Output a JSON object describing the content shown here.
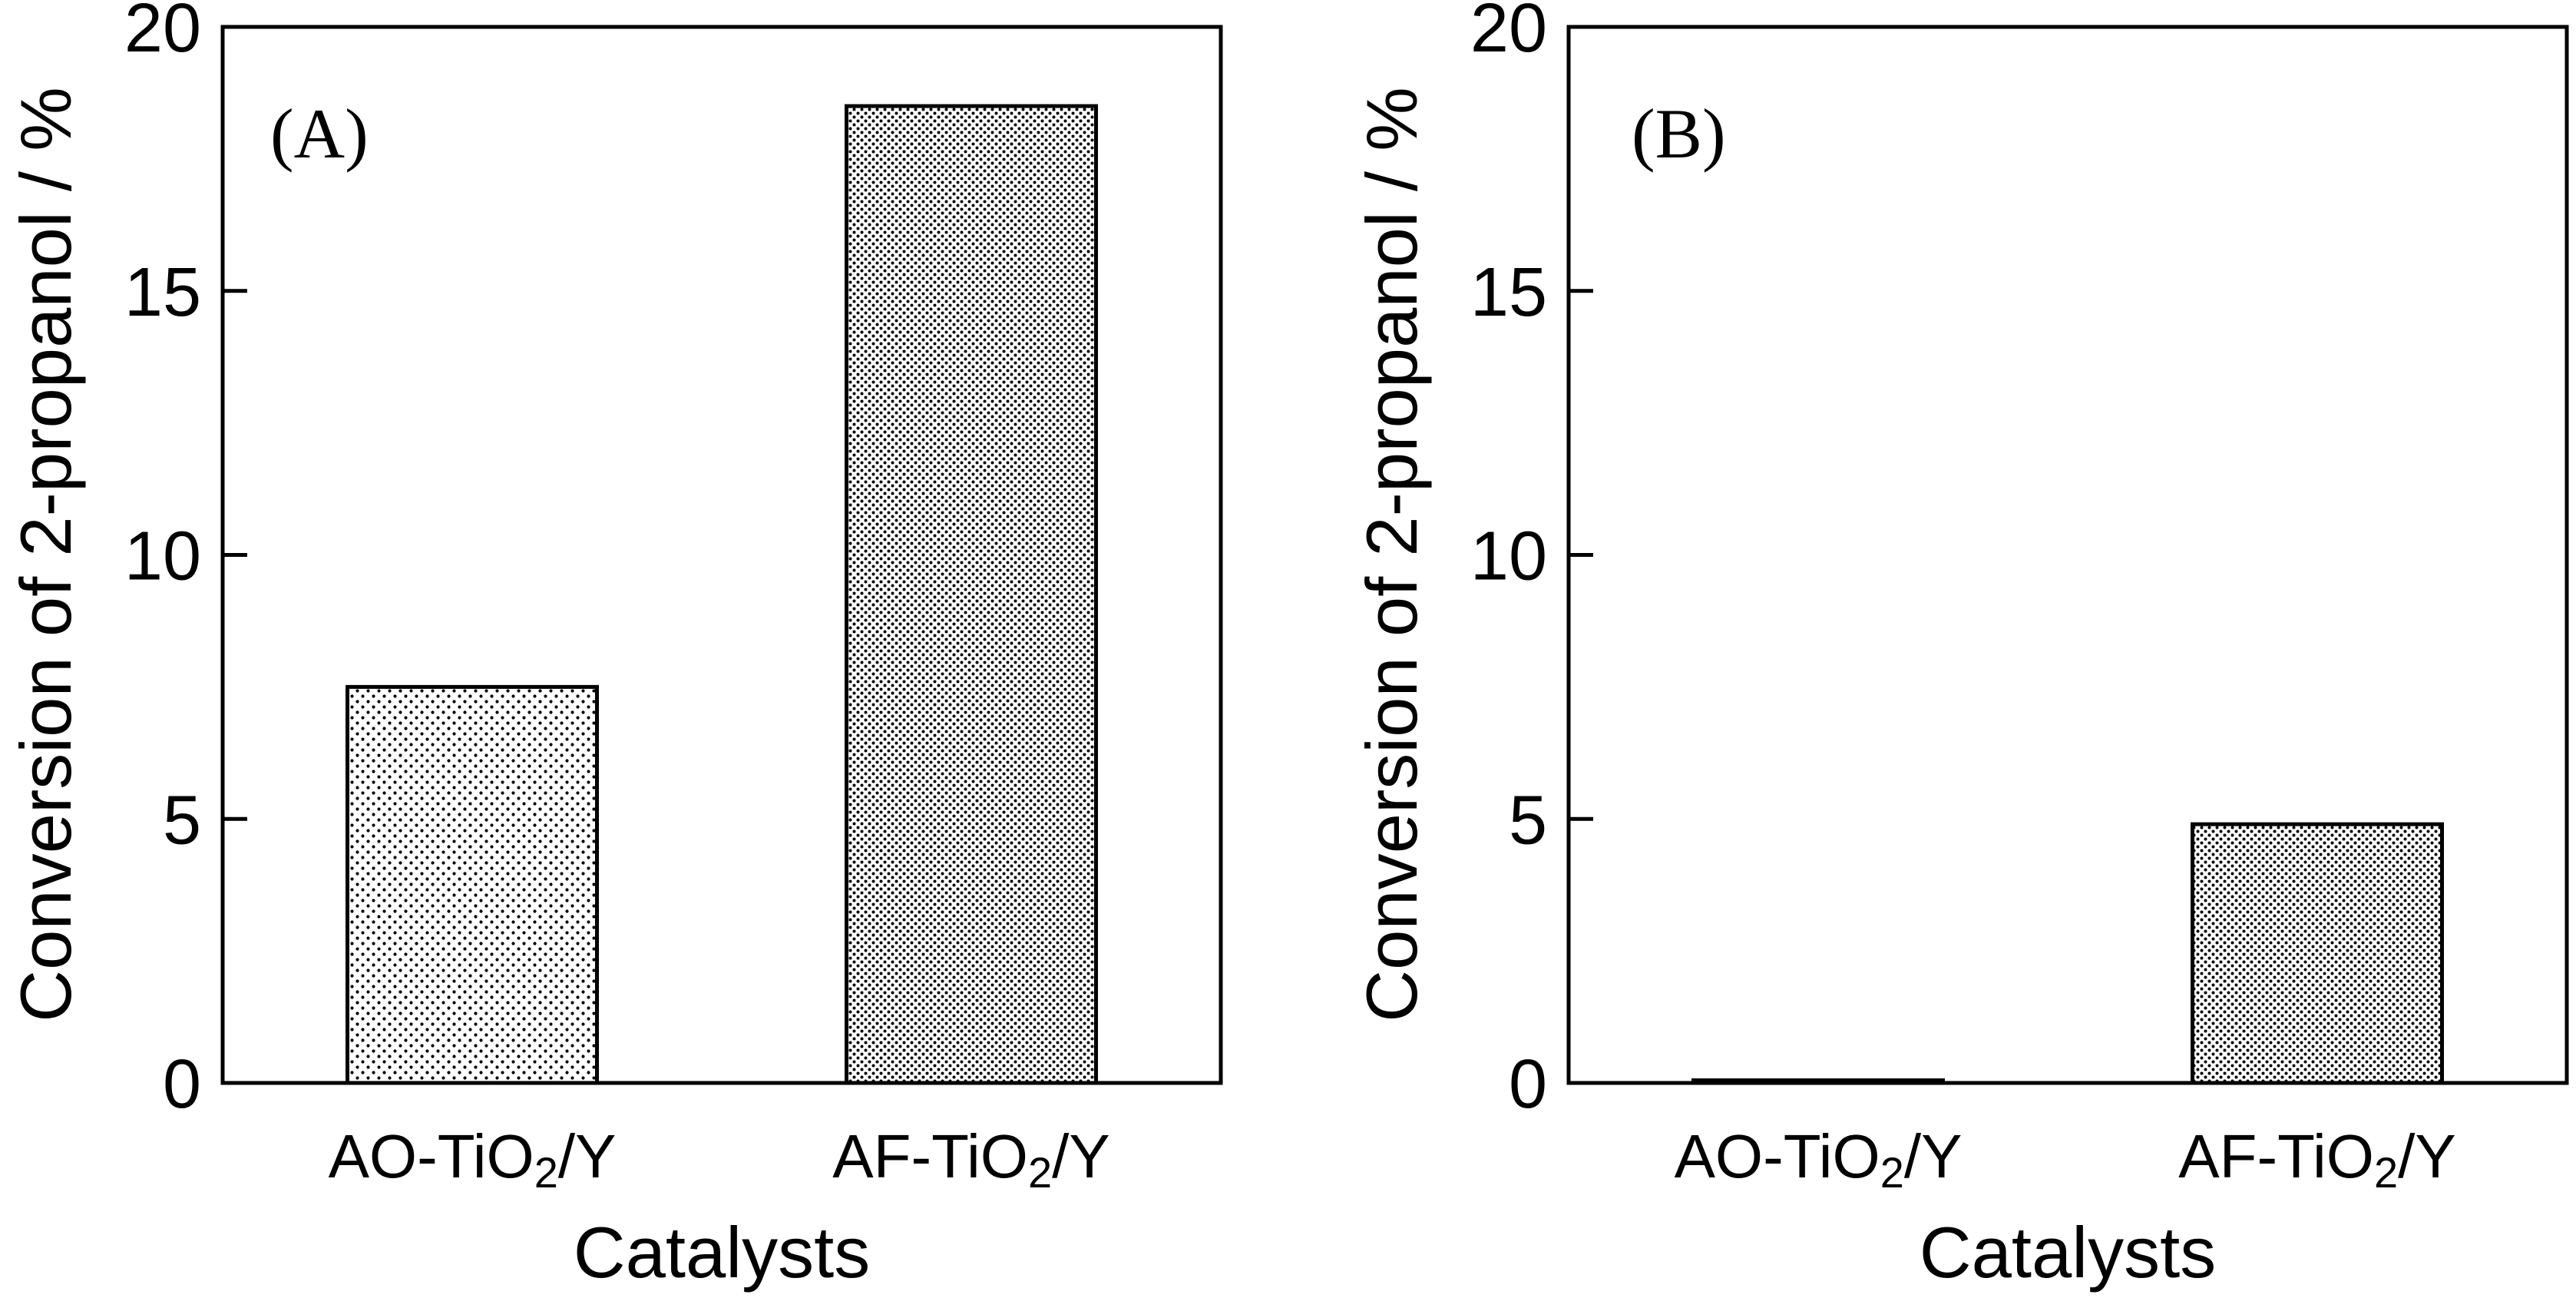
{
  "chart_data": [
    {
      "type": "bar",
      "panel_label": "(A)",
      "categories": [
        "AO-TiO2/Y",
        "AF-TiO2/Y"
      ],
      "values": [
        7.5,
        18.5
      ],
      "title": "",
      "xlabel": "Catalysts",
      "ylabel": "Conversion of 2-propanol / %",
      "ylim": [
        0,
        20
      ],
      "yticks": [
        0,
        5,
        10,
        15,
        20
      ],
      "grid": false,
      "patterns": [
        "dots-sparse",
        "dots-dense"
      ]
    },
    {
      "type": "bar",
      "panel_label": "(B)",
      "categories": [
        "AO-TiO2/Y",
        "AF-TiO2/Y"
      ],
      "values": [
        0.05,
        4.9
      ],
      "title": "",
      "xlabel": "Catalysts",
      "ylabel": "Conversion of 2-propanol / %",
      "ylim": [
        0,
        20
      ],
      "yticks": [
        0,
        5,
        10,
        15,
        20
      ],
      "grid": false,
      "patterns": [
        "dots-sparse",
        "dots-dense"
      ]
    }
  ],
  "colors": {
    "axis": "#000000",
    "background": "#ffffff",
    "bar_fill": "#ffffff",
    "dot": "#000000"
  }
}
